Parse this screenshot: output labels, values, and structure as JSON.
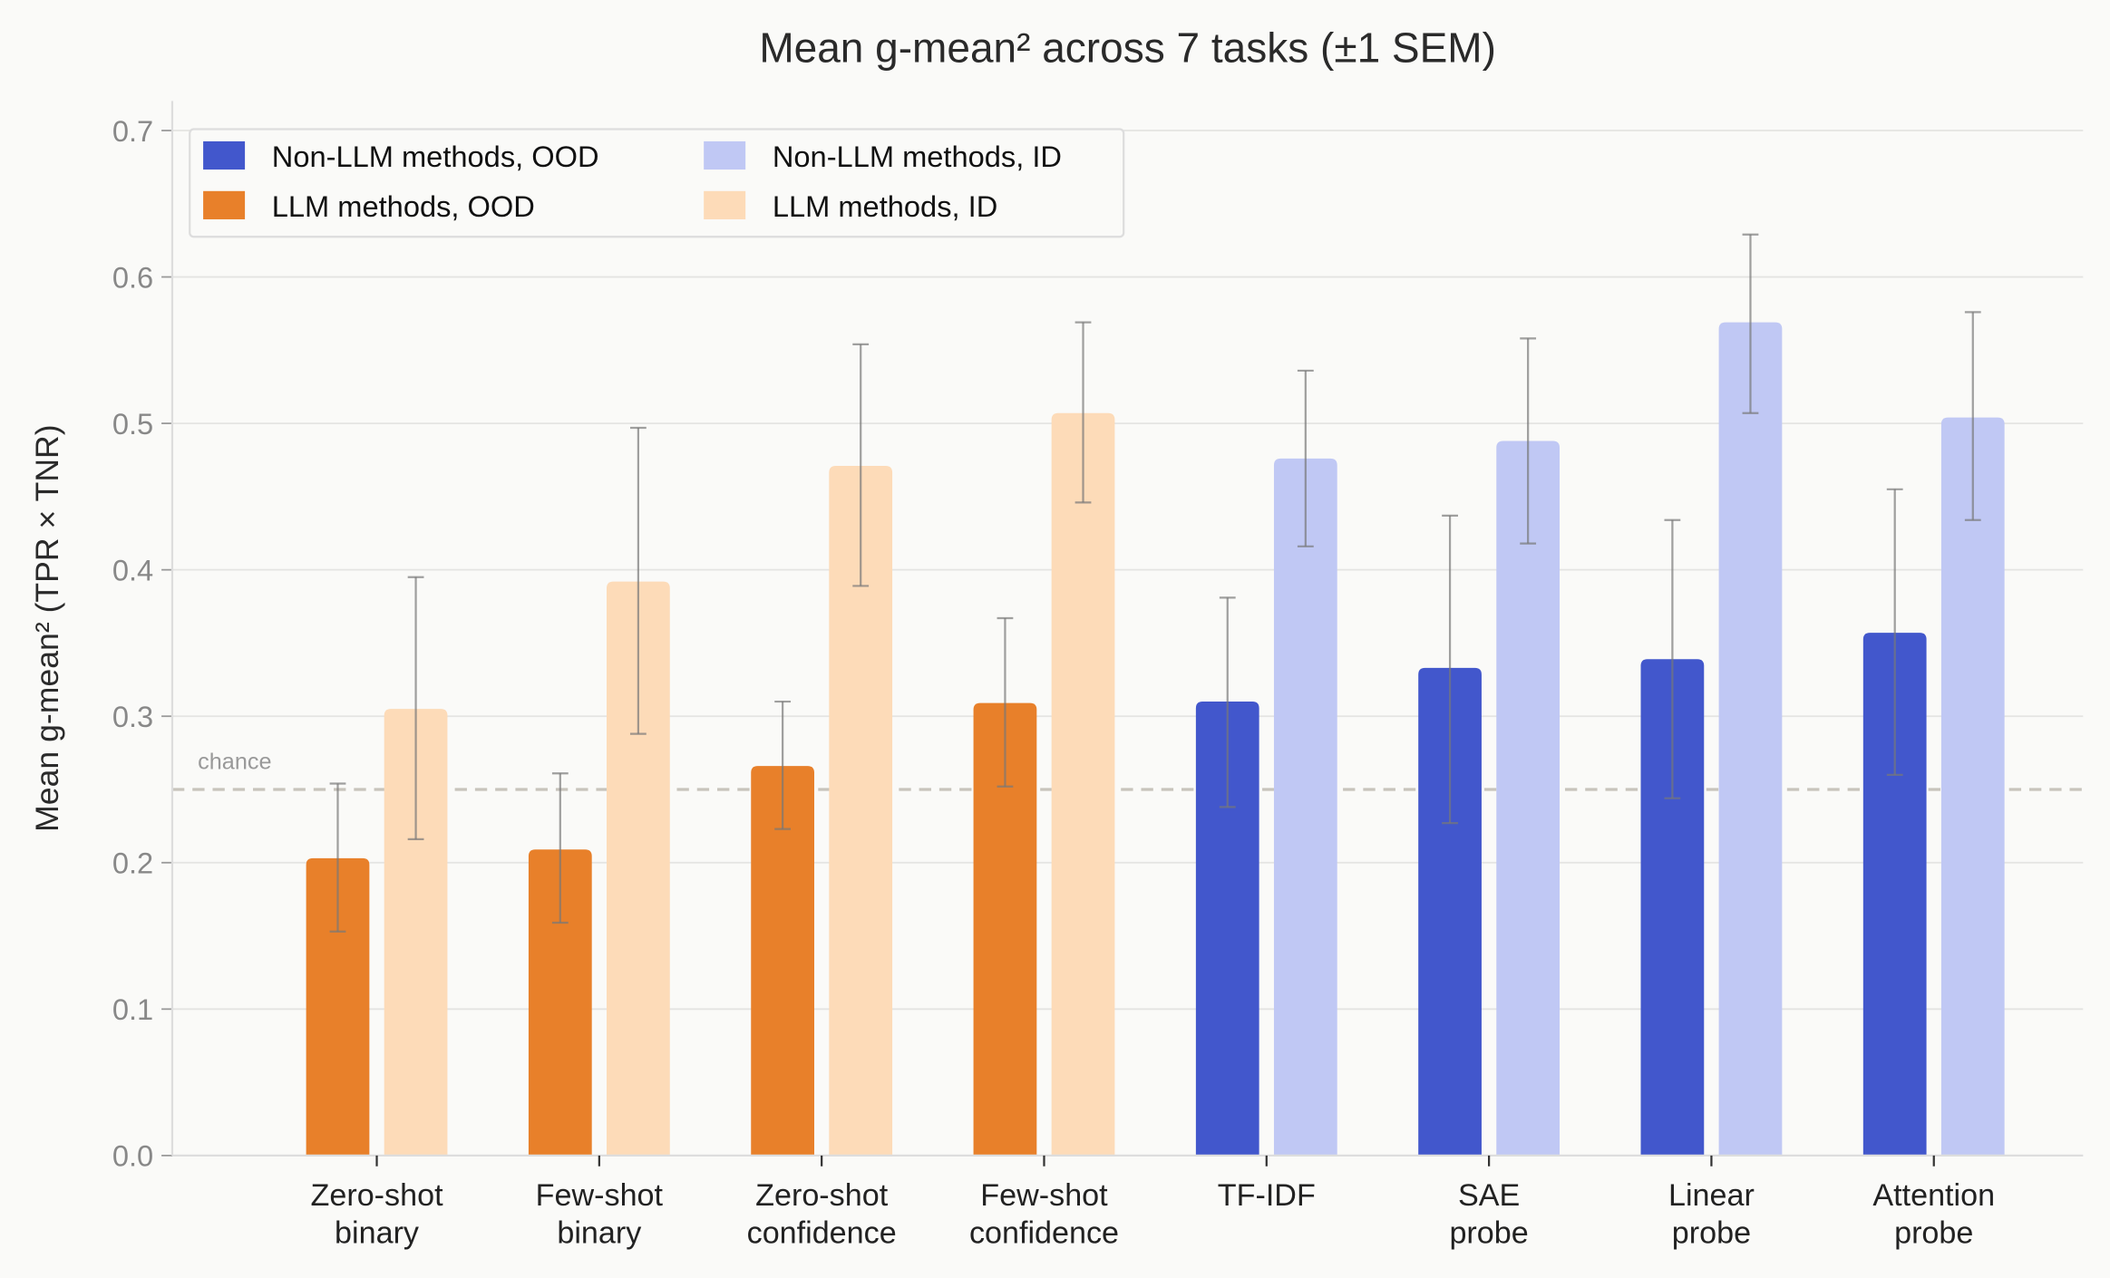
{
  "chart_data": {
    "type": "bar",
    "title": "Mean g-mean² across 7 tasks (±1 SEM)",
    "ylabel": "Mean g-mean²  (TPR × TNR)",
    "xlabel": "",
    "ylim": [
      0,
      0.72
    ],
    "yticks": [
      0.0,
      0.1,
      0.2,
      0.3,
      0.4,
      0.5,
      0.6,
      0.7
    ],
    "ytick_labels": [
      "0.0",
      "0.1",
      "0.2",
      "0.3",
      "0.4",
      "0.5",
      "0.6",
      "0.7"
    ],
    "grid": "horizontal",
    "legend_placement": "top-left",
    "categories": [
      [
        "Zero-shot",
        "binary"
      ],
      [
        "Few-shot",
        "binary"
      ],
      [
        "Zero-shot",
        "confidence"
      ],
      [
        "Few-shot",
        "confidence"
      ],
      [
        "TF-IDF"
      ],
      [
        "SAE",
        "probe"
      ],
      [
        "Linear",
        "probe"
      ],
      [
        "Attention",
        "probe"
      ]
    ],
    "reference_line": {
      "value": 0.25,
      "label": "chance",
      "color": "#c8c4bc"
    },
    "legend": [
      {
        "name": "Non-LLM methods, OOD",
        "color": "#4257cc"
      },
      {
        "name": "Non-LLM methods, ID",
        "color": "#c0c8f4"
      },
      {
        "name": "LLM methods, OOD",
        "color": "#e8802a"
      },
      {
        "name": "LLM methods, ID",
        "color": "#fddbb8"
      }
    ],
    "series": [
      {
        "split": "OOD",
        "values": [
          0.203,
          0.209,
          0.266,
          0.309,
          0.31,
          0.333,
          0.339,
          0.357
        ],
        "err_low": [
          0.153,
          0.159,
          0.223,
          0.252,
          0.238,
          0.227,
          0.244,
          0.26
        ],
        "err_high": [
          0.254,
          0.261,
          0.31,
          0.367,
          0.381,
          0.437,
          0.434,
          0.455
        ],
        "colors": [
          "#e8802a",
          "#e8802a",
          "#e8802a",
          "#e8802a",
          "#4257cc",
          "#4257cc",
          "#4257cc",
          "#4257cc"
        ]
      },
      {
        "split": "ID",
        "values": [
          0.305,
          0.392,
          0.471,
          0.507,
          0.476,
          0.488,
          0.569,
          0.504
        ],
        "err_low": [
          0.216,
          0.288,
          0.389,
          0.446,
          0.416,
          0.418,
          0.507,
          0.434
        ],
        "err_high": [
          0.395,
          0.497,
          0.554,
          0.569,
          0.536,
          0.558,
          0.629,
          0.576
        ],
        "colors": [
          "#fddbb8",
          "#fddbb8",
          "#fddbb8",
          "#fddbb8",
          "#c0c8f4",
          "#c0c8f4",
          "#c0c8f4",
          "#c0c8f4"
        ]
      }
    ]
  }
}
